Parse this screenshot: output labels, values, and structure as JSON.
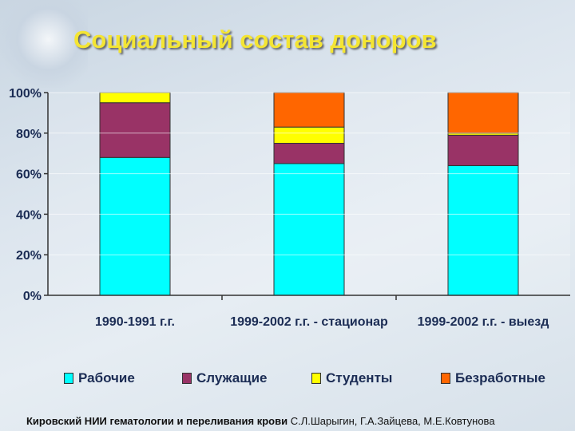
{
  "title": "Социальный состав доноров",
  "chart_data": {
    "type": "bar",
    "stacked": true,
    "categories": [
      "1990-1991 г.г.",
      "1999-2002 г.г. - стационар",
      "1999-2002 г.г. - выезд"
    ],
    "series": [
      {
        "name": "Рабочие",
        "color": "#00ffff",
        "values": [
          68,
          65,
          64
        ]
      },
      {
        "name": "Служащие",
        "color": "#993366",
        "values": [
          27,
          10,
          15
        ]
      },
      {
        "name": "Студенты",
        "color": "#ffff00",
        "values": [
          5,
          8,
          1
        ]
      },
      {
        "name": "Безработные",
        "color": "#ff6600",
        "values": [
          0,
          17,
          20
        ]
      }
    ],
    "ylim": [
      0,
      100
    ],
    "yticks": [
      "0%",
      "20%",
      "40%",
      "60%",
      "80%",
      "100%"
    ],
    "grid": false,
    "legend_position": "bottom"
  },
  "footer": {
    "institute": "Кировский НИИ гематологии и переливания крови",
    "authors": "С.Л.Шарыгин, Г.А.Зайцева, М.Е.Ковтунова"
  }
}
